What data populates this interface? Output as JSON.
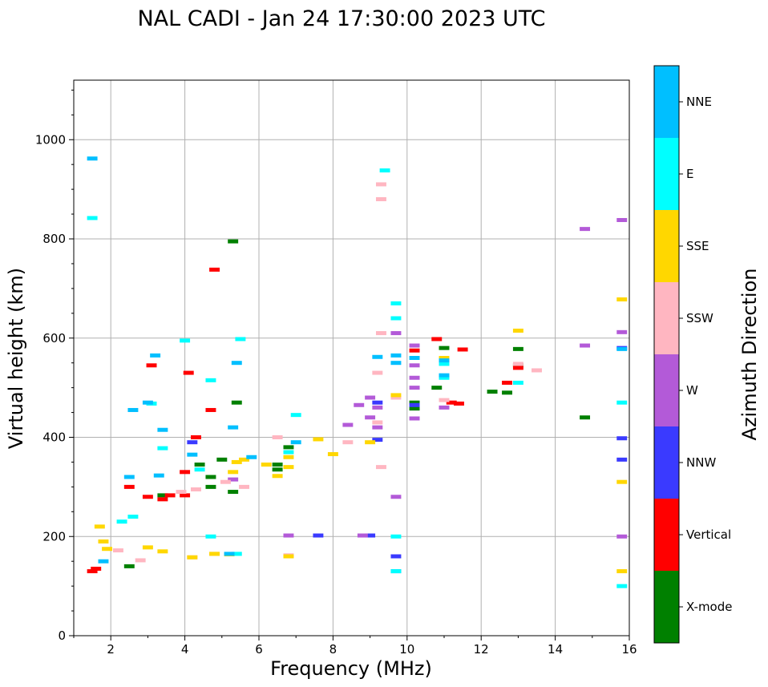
{
  "chart_data": {
    "type": "scatter",
    "title": "NAL CADI - Jan 24 17:30:00 2023 UTC",
    "xlabel": "Frequency (MHz)",
    "ylabel": "Virtual height (km)",
    "xlim": [
      1,
      16
    ],
    "ylim": [
      0,
      1120
    ],
    "xticks": [
      2,
      4,
      6,
      8,
      10,
      12,
      14,
      16
    ],
    "yticks": [
      0,
      200,
      400,
      600,
      800,
      1000
    ],
    "grid": true,
    "colorbar": {
      "label": "Azimuth Direction",
      "categories": [
        {
          "name": "X-mode",
          "color": "#008000"
        },
        {
          "name": "Vertical",
          "color": "#ff0000"
        },
        {
          "name": "NNW",
          "color": "#3a3aff"
        },
        {
          "name": "W",
          "color": "#b35ad8"
        },
        {
          "name": "SSW",
          "color": "#ffb6c1"
        },
        {
          "name": "SSE",
          "color": "#ffd700"
        },
        {
          "name": "E",
          "color": "#00ffff"
        },
        {
          "name": "NNE",
          "color": "#00bfff"
        }
      ]
    },
    "series": [
      {
        "name": "X-mode",
        "points": [
          [
            5.3,
            795
          ],
          [
            2.5,
            140
          ],
          [
            4.7,
            300
          ],
          [
            4.7,
            320
          ],
          [
            5.0,
            355
          ],
          [
            5.3,
            290
          ],
          [
            5.4,
            470
          ],
          [
            6.5,
            345
          ],
          [
            6.5,
            335
          ],
          [
            6.8,
            380
          ],
          [
            10.2,
            470
          ],
          [
            10.2,
            458
          ],
          [
            10.8,
            500
          ],
          [
            11.0,
            580
          ],
          [
            12.3,
            492
          ],
          [
            12.7,
            490
          ],
          [
            13.0,
            578
          ],
          [
            13.0,
            545
          ],
          [
            14.8,
            440
          ],
          [
            4.4,
            345
          ],
          [
            3.4,
            283
          ]
        ]
      },
      {
        "name": "Vertical",
        "points": [
          [
            1.5,
            130
          ],
          [
            1.6,
            135
          ],
          [
            3.1,
            545
          ],
          [
            4.1,
            530
          ],
          [
            4.8,
            738
          ],
          [
            4.7,
            455
          ],
          [
            2.5,
            300
          ],
          [
            3.0,
            280
          ],
          [
            3.4,
            275
          ],
          [
            3.6,
            283
          ],
          [
            4.0,
            330
          ],
          [
            4.3,
            400
          ],
          [
            10.2,
            575
          ],
          [
            10.8,
            598
          ],
          [
            11.2,
            470
          ],
          [
            11.4,
            468
          ],
          [
            11.5,
            577
          ],
          [
            12.7,
            510
          ],
          [
            13.0,
            540
          ],
          [
            4.0,
            283
          ]
        ]
      },
      {
        "name": "NNW",
        "points": [
          [
            7.6,
            202
          ],
          [
            9.2,
            395
          ],
          [
            9.2,
            470
          ],
          [
            9.7,
            130
          ],
          [
            9.7,
            160
          ],
          [
            10.2,
            465
          ],
          [
            15.8,
            580
          ],
          [
            15.8,
            355
          ],
          [
            15.8,
            398
          ],
          [
            9.0,
            202
          ],
          [
            4.2,
            390
          ]
        ]
      },
      {
        "name": "W",
        "points": [
          [
            6.8,
            202
          ],
          [
            8.4,
            425
          ],
          [
            8.7,
            465
          ],
          [
            9.0,
            480
          ],
          [
            9.0,
            440
          ],
          [
            9.2,
            420
          ],
          [
            9.2,
            460
          ],
          [
            9.7,
            280
          ],
          [
            9.7,
            610
          ],
          [
            10.2,
            585
          ],
          [
            10.2,
            545
          ],
          [
            10.2,
            520
          ],
          [
            10.2,
            500
          ],
          [
            10.2,
            438
          ],
          [
            11.0,
            460
          ],
          [
            14.8,
            820
          ],
          [
            14.8,
            585
          ],
          [
            15.8,
            838
          ],
          [
            15.8,
            612
          ],
          [
            15.8,
            200
          ],
          [
            5.3,
            315
          ],
          [
            8.8,
            202
          ]
        ]
      },
      {
        "name": "SSW",
        "points": [
          [
            9.3,
            910
          ],
          [
            9.3,
            880
          ],
          [
            9.3,
            610
          ],
          [
            9.3,
            340
          ],
          [
            9.2,
            530
          ],
          [
            9.2,
            430
          ],
          [
            8.4,
            390
          ],
          [
            9.7,
            480
          ],
          [
            11.0,
            475
          ],
          [
            13.0,
            548
          ],
          [
            13.5,
            535
          ],
          [
            4.2,
            158
          ],
          [
            4.8,
            165
          ],
          [
            2.8,
            152
          ],
          [
            5.6,
            300
          ],
          [
            6.5,
            400
          ],
          [
            2.2,
            172
          ],
          [
            3.9,
            290
          ],
          [
            4.3,
            295
          ],
          [
            6.8,
            162
          ],
          [
            5.1,
            310
          ]
        ]
      },
      {
        "name": "SSE",
        "points": [
          [
            1.7,
            220
          ],
          [
            1.8,
            190
          ],
          [
            1.9,
            175
          ],
          [
            3.0,
            178
          ],
          [
            3.4,
            170
          ],
          [
            4.2,
            158
          ],
          [
            4.8,
            165
          ],
          [
            5.3,
            330
          ],
          [
            5.4,
            350
          ],
          [
            6.2,
            345
          ],
          [
            6.5,
            322
          ],
          [
            6.8,
            340
          ],
          [
            6.8,
            360
          ],
          [
            7.6,
            396
          ],
          [
            8.0,
            366
          ],
          [
            9.0,
            390
          ],
          [
            9.7,
            485
          ],
          [
            11.0,
            560
          ],
          [
            13.0,
            615
          ],
          [
            15.8,
            678
          ],
          [
            15.8,
            310
          ],
          [
            15.8,
            130
          ],
          [
            6.8,
            160
          ],
          [
            5.6,
            355
          ],
          [
            5.2,
            164
          ]
        ]
      },
      {
        "name": "E",
        "points": [
          [
            1.5,
            842
          ],
          [
            9.4,
            938
          ],
          [
            9.7,
            130
          ],
          [
            9.7,
            200
          ],
          [
            9.7,
            670
          ],
          [
            9.7,
            640
          ],
          [
            4.0,
            595
          ],
          [
            4.7,
            515
          ],
          [
            5.5,
            598
          ],
          [
            3.4,
            378
          ],
          [
            3.1,
            468
          ],
          [
            2.6,
            240
          ],
          [
            2.3,
            230
          ],
          [
            6.8,
            370
          ],
          [
            7.0,
            445
          ],
          [
            11.0,
            520
          ],
          [
            11.0,
            548
          ],
          [
            13.0,
            510
          ],
          [
            15.8,
            100
          ],
          [
            15.8,
            470
          ],
          [
            4.7,
            200
          ],
          [
            5.4,
            165
          ],
          [
            4.4,
            335
          ]
        ]
      },
      {
        "name": "NNE",
        "points": [
          [
            1.5,
            962
          ],
          [
            3.2,
            565
          ],
          [
            3.4,
            415
          ],
          [
            5.3,
            420
          ],
          [
            5.4,
            550
          ],
          [
            9.2,
            562
          ],
          [
            9.7,
            565
          ],
          [
            9.7,
            550
          ],
          [
            10.2,
            560
          ],
          [
            11.0,
            555
          ],
          [
            11.0,
            525
          ],
          [
            1.8,
            150
          ],
          [
            2.5,
            320
          ],
          [
            2.6,
            455
          ],
          [
            3.0,
            470
          ],
          [
            4.2,
            365
          ],
          [
            5.8,
            360
          ],
          [
            7.0,
            390
          ],
          [
            15.8,
            578
          ],
          [
            5.2,
            165
          ],
          [
            3.3,
            323
          ]
        ]
      }
    ]
  }
}
